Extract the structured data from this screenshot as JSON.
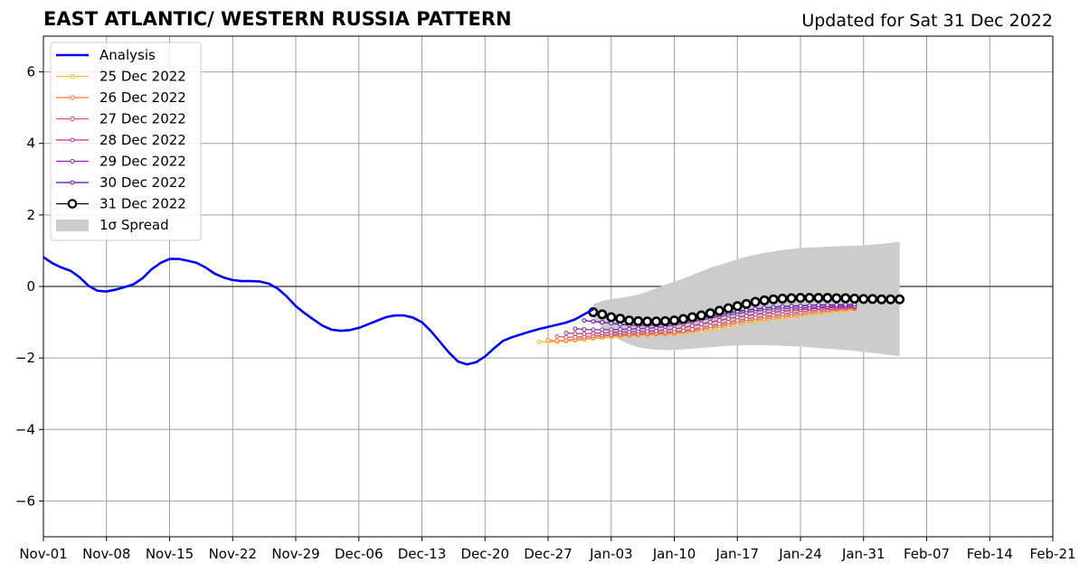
{
  "title": "EAST ATLANTIC/ WESTERN RUSSIA PATTERN",
  "subtitle": "Updated for Sat 31 Dec 2022",
  "chart_data": {
    "type": "line",
    "title": "EAST ATLANTIC/ WESTERN RUSSIA PATTERN",
    "xlabel": "",
    "ylabel": "",
    "xlim": [
      "2022-11-01",
      "2023-02-21"
    ],
    "ylim": [
      -7,
      7
    ],
    "grid": true,
    "legend_position": "top-left",
    "x_ticks": [
      "2022-11-01",
      "2022-11-08",
      "2022-11-15",
      "2022-11-22",
      "2022-11-29",
      "2022-12-06",
      "2022-12-13",
      "2022-12-20",
      "2022-12-27",
      "2023-01-03",
      "2023-01-10",
      "2023-01-17",
      "2023-01-24",
      "2023-01-31",
      "2023-02-07",
      "2023-02-14",
      "2023-02-21"
    ],
    "x_tick_labels": [
      "Nov-01",
      "Nov-08",
      "Nov-15",
      "Nov-22",
      "Nov-29",
      "Dec-06",
      "Dec-13",
      "Dec-20",
      "Dec-27",
      "Jan-03",
      "Jan-10",
      "Jan-17",
      "Jan-24",
      "Jan-31",
      "Feb-07",
      "Feb-14",
      "Feb-21"
    ],
    "y_ticks": [
      -6,
      -4,
      -2,
      0,
      2,
      4,
      6
    ],
    "y_tick_labels": [
      "−6",
      "−4",
      "−2",
      "0",
      "2",
      "4",
      "6"
    ],
    "analysis": {
      "name": "Analysis",
      "color": "#0000ff",
      "start": "2022-11-01",
      "values": [
        0.82,
        0.65,
        0.53,
        0.44,
        0.26,
        0.02,
        -0.12,
        -0.14,
        -0.09,
        -0.02,
        0.06,
        0.23,
        0.48,
        0.66,
        0.77,
        0.77,
        0.72,
        0.66,
        0.53,
        0.36,
        0.25,
        0.18,
        0.15,
        0.15,
        0.14,
        0.08,
        -0.06,
        -0.28,
        -0.55,
        -0.75,
        -0.93,
        -1.1,
        -1.21,
        -1.24,
        -1.22,
        -1.16,
        -1.06,
        -0.96,
        -0.86,
        -0.81,
        -0.81,
        -0.87,
        -1.0,
        -1.25,
        -1.55,
        -1.85,
        -2.1,
        -2.18,
        -2.12,
        -1.96,
        -1.73,
        -1.52,
        -1.42,
        -1.34,
        -1.26,
        -1.19,
        -1.13,
        -1.07,
        -1.01,
        -0.92,
        -0.78,
        -0.64
      ]
    },
    "forecasts": [
      {
        "name": "25 Dec 2022",
        "color": "#fbb833",
        "start": "2022-12-26",
        "values": [
          -1.55,
          -1.55,
          -1.55,
          -1.53,
          -1.51,
          -1.49,
          -1.46,
          -1.44,
          -1.42,
          -1.4,
          -1.38,
          -1.37,
          -1.36,
          -1.35,
          -1.34,
          -1.33,
          -1.31,
          -1.28,
          -1.25,
          -1.21,
          -1.17,
          -1.12,
          -1.07,
          -1.02,
          -0.98,
          -0.95,
          -0.92,
          -0.89,
          -0.86,
          -0.83,
          -0.8,
          -0.77,
          -0.74,
          -0.71,
          -0.68,
          -0.65
        ]
      },
      {
        "name": "26 Dec 2022",
        "color": "#f37c3d",
        "start": "2022-12-27",
        "values": [
          -1.5,
          -1.52,
          -1.5,
          -1.48,
          -1.45,
          -1.43,
          -1.4,
          -1.38,
          -1.37,
          -1.36,
          -1.35,
          -1.34,
          -1.33,
          -1.32,
          -1.3,
          -1.27,
          -1.24,
          -1.2,
          -1.16,
          -1.11,
          -1.06,
          -1.01,
          -0.97,
          -0.93,
          -0.9,
          -0.87,
          -0.84,
          -0.81,
          -0.78,
          -0.75,
          -0.72,
          -0.69,
          -0.66,
          -0.64,
          -0.62
        ]
      },
      {
        "name": "27 Dec 2022",
        "color": "#d9546a",
        "start": "2022-12-28",
        "values": [
          -1.4,
          -1.42,
          -1.42,
          -1.4,
          -1.38,
          -1.36,
          -1.35,
          -1.34,
          -1.33,
          -1.32,
          -1.31,
          -1.3,
          -1.29,
          -1.27,
          -1.24,
          -1.2,
          -1.15,
          -1.1,
          -1.05,
          -1.0,
          -0.95,
          -0.91,
          -0.87,
          -0.84,
          -0.81,
          -0.78,
          -0.75,
          -0.72,
          -0.69,
          -0.67,
          -0.65,
          -0.63,
          -0.61,
          -0.6
        ]
      },
      {
        "name": "28 Dec 2022",
        "color": "#b5367a",
        "start": "2022-12-29",
        "values": [
          -1.3,
          -1.32,
          -1.32,
          -1.31,
          -1.3,
          -1.29,
          -1.28,
          -1.27,
          -1.26,
          -1.25,
          -1.24,
          -1.22,
          -1.19,
          -1.15,
          -1.1,
          -1.05,
          -1.0,
          -0.95,
          -0.9,
          -0.86,
          -0.82,
          -0.78,
          -0.75,
          -0.72,
          -0.69,
          -0.67,
          -0.65,
          -0.63,
          -0.61,
          -0.6,
          -0.59,
          -0.58,
          -0.57
        ]
      },
      {
        "name": "29 Dec 2022",
        "color": "#8b2aa5",
        "start": "2022-12-30",
        "values": [
          -1.18,
          -1.2,
          -1.21,
          -1.21,
          -1.21,
          -1.2,
          -1.19,
          -1.18,
          -1.17,
          -1.15,
          -1.12,
          -1.08,
          -1.04,
          -0.99,
          -0.94,
          -0.89,
          -0.84,
          -0.8,
          -0.76,
          -0.72,
          -0.69,
          -0.66,
          -0.64,
          -0.62,
          -0.61,
          -0.6,
          -0.59,
          -0.58,
          -0.57,
          -0.56,
          -0.55,
          -0.55
        ]
      },
      {
        "name": "30 Dec 2022",
        "color": "#5b13a8",
        "start": "2022-12-31",
        "values": [
          -0.95,
          -0.98,
          -1.0,
          -1.03,
          -1.06,
          -1.08,
          -1.09,
          -1.09,
          -1.08,
          -1.06,
          -1.03,
          -0.99,
          -0.94,
          -0.89,
          -0.84,
          -0.79,
          -0.74,
          -0.7,
          -0.66,
          -0.63,
          -0.6,
          -0.58,
          -0.56,
          -0.55,
          -0.54,
          -0.53,
          -0.52,
          -0.52,
          -0.52,
          -0.51,
          -0.5
        ]
      },
      {
        "name": "31 Dec 2022",
        "color": "#000000",
        "start": "2023-01-01",
        "values": [
          -0.72,
          -0.78,
          -0.86,
          -0.9,
          -0.95,
          -0.97,
          -0.98,
          -0.98,
          -0.97,
          -0.95,
          -0.91,
          -0.86,
          -0.81,
          -0.75,
          -0.68,
          -0.61,
          -0.55,
          -0.49,
          -0.43,
          -0.39,
          -0.36,
          -0.34,
          -0.33,
          -0.32,
          -0.32,
          -0.32,
          -0.32,
          -0.33,
          -0.33,
          -0.34,
          -0.35,
          -0.35,
          -0.36,
          -0.36,
          -0.36
        ]
      }
    ],
    "spread": {
      "name": "1σ Spread",
      "color": "#cccccc",
      "start": "2023-01-01",
      "upper": [
        -0.5,
        -0.4,
        -0.35,
        -0.32,
        -0.28,
        -0.22,
        -0.15,
        -0.05,
        0.05,
        0.13,
        0.22,
        0.32,
        0.42,
        0.52,
        0.6,
        0.68,
        0.76,
        0.83,
        0.89,
        0.94,
        0.98,
        1.02,
        1.05,
        1.07,
        1.09,
        1.1,
        1.11,
        1.12,
        1.13,
        1.14,
        1.15,
        1.17,
        1.19,
        1.22,
        1.25
      ],
      "lower": [
        -0.9,
        -1.15,
        -1.35,
        -1.5,
        -1.62,
        -1.7,
        -1.74,
        -1.77,
        -1.78,
        -1.78,
        -1.76,
        -1.74,
        -1.72,
        -1.7,
        -1.68,
        -1.66,
        -1.65,
        -1.64,
        -1.64,
        -1.64,
        -1.65,
        -1.66,
        -1.67,
        -1.68,
        -1.7,
        -1.72,
        -1.74,
        -1.76,
        -1.78,
        -1.8,
        -1.83,
        -1.86,
        -1.89,
        -1.92,
        -1.95
      ]
    }
  }
}
